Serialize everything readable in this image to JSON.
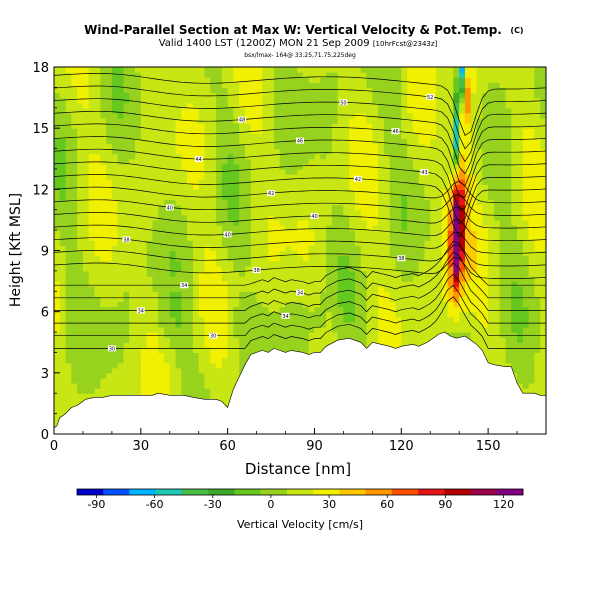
{
  "header": {
    "title": "Wind-Parallel Section at Max W: Vertical Velocity & Pot.Temp.",
    "copyright": "(C)",
    "valid_line": "Valid 1400 LST (1200Z) MON 21 Sep 2009",
    "forecast_tag": "[10hrFcst@2343z]",
    "location_line": "bsx/lmax- 164@ 33.25,71.75,225deg"
  },
  "chart_data": {
    "type": "heatmap",
    "xlabel": "Distance [nm]",
    "ylabel": "Height [Kft MSL]",
    "xlim": [
      0,
      170
    ],
    "ylim": [
      0,
      18
    ],
    "x_ticks": [
      0,
      30,
      60,
      90,
      120,
      150
    ],
    "y_ticks": [
      0,
      3,
      6,
      9,
      12,
      15,
      18
    ],
    "colorbar": {
      "label": "Vertical Velocity [cm/s]",
      "ticks": [
        -90,
        -60,
        -30,
        0,
        30,
        60,
        90,
        120
      ],
      "range": [
        -100,
        130
      ],
      "colors": [
        "#0000c8",
        "#0050ff",
        "#00b4ff",
        "#1ec8b4",
        "#46be46",
        "#3caa28",
        "#64c81e",
        "#96d21e",
        "#c8e614",
        "#f0f000",
        "#ffc800",
        "#ff9600",
        "#ff5000",
        "#e61414",
        "#b40000",
        "#9b004b",
        "#820082"
      ]
    },
    "terrain": [
      [
        0,
        0.3
      ],
      [
        1,
        0.4
      ],
      [
        2,
        0.8
      ],
      [
        4,
        1.0
      ],
      [
        6,
        1.3
      ],
      [
        8,
        1.4
      ],
      [
        9,
        1.5
      ],
      [
        11,
        1.7
      ],
      [
        14,
        1.8
      ],
      [
        17,
        1.8
      ],
      [
        20,
        1.9
      ],
      [
        25,
        1.9
      ],
      [
        30,
        1.9
      ],
      [
        34,
        1.9
      ],
      [
        36,
        2.0
      ],
      [
        40,
        1.9
      ],
      [
        45,
        1.9
      ],
      [
        48,
        1.8
      ],
      [
        52,
        1.7
      ],
      [
        56,
        1.7
      ],
      [
        58,
        1.6
      ],
      [
        60,
        1.3
      ],
      [
        62,
        2.2
      ],
      [
        64,
        2.8
      ],
      [
        66,
        3.4
      ],
      [
        68,
        3.9
      ],
      [
        70,
        4.0
      ],
      [
        72,
        4.1
      ],
      [
        74,
        4.0
      ],
      [
        76,
        4.2
      ],
      [
        78,
        4.1
      ],
      [
        80,
        4.0
      ],
      [
        82,
        4.1
      ],
      [
        86,
        4.0
      ],
      [
        88,
        3.9
      ],
      [
        90,
        4.0
      ],
      [
        92,
        4.0
      ],
      [
        94,
        4.3
      ],
      [
        98,
        4.6
      ],
      [
        102,
        4.7
      ],
      [
        106,
        4.5
      ],
      [
        108,
        4.2
      ],
      [
        110,
        4.5
      ],
      [
        113,
        4.4
      ],
      [
        116,
        4.3
      ],
      [
        118,
        4.2
      ],
      [
        120,
        4.3
      ],
      [
        124,
        4.4
      ],
      [
        126,
        4.3
      ],
      [
        129,
        4.5
      ],
      [
        131,
        4.7
      ],
      [
        133,
        4.9
      ],
      [
        135,
        5.0
      ],
      [
        137,
        4.8
      ],
      [
        139,
        4.7
      ],
      [
        142,
        4.8
      ],
      [
        144,
        4.6
      ],
      [
        146,
        4.4
      ],
      [
        148,
        4.1
      ],
      [
        150,
        3.5
      ],
      [
        152,
        3.4
      ],
      [
        156,
        3.3
      ],
      [
        158,
        3.3
      ],
      [
        160,
        2.5
      ],
      [
        162,
        2.0
      ],
      [
        166,
        2.0
      ],
      [
        168,
        1.9
      ],
      [
        170,
        1.9
      ]
    ],
    "updraft_plume": {
      "axis": [
        [
          138,
          5.0
        ],
        [
          139,
          8.0
        ],
        [
          139.5,
          11.0
        ],
        [
          141,
          14.0
        ],
        [
          143,
          18.0
        ]
      ],
      "peak_value": 125,
      "downdraft_core_value": -85
    },
    "theta_contours": {
      "count": 22,
      "labels": [
        "30",
        "30",
        "34",
        "34",
        "34",
        "34",
        "38",
        "38",
        "38",
        "40",
        "40",
        "40",
        "42",
        "42",
        "43",
        "44",
        "46",
        "46",
        "48",
        "50",
        "52"
      ]
    }
  }
}
